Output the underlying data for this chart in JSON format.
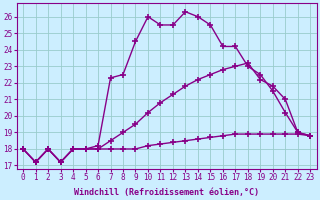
{
  "xlabel": "Windchill (Refroidissement éolien,°C)",
  "background_color": "#cceeff",
  "line_color": "#880088",
  "grid_color": "#99cccc",
  "xlim": [
    -0.5,
    23.5
  ],
  "ylim": [
    16.8,
    26.8
  ],
  "yticks": [
    17,
    18,
    19,
    20,
    21,
    22,
    23,
    24,
    25,
    26
  ],
  "xticks": [
    0,
    1,
    2,
    3,
    4,
    5,
    6,
    7,
    8,
    9,
    10,
    11,
    12,
    13,
    14,
    15,
    16,
    17,
    18,
    19,
    20,
    21,
    22,
    23
  ],
  "line1_x": [
    0,
    1,
    2,
    3,
    4,
    5,
    6,
    7,
    8,
    9,
    10,
    11,
    12,
    13,
    14,
    15,
    16,
    17,
    18,
    19,
    20,
    21,
    22,
    23
  ],
  "line1_y": [
    18.0,
    17.2,
    18.0,
    17.2,
    18.0,
    18.0,
    18.0,
    18.0,
    18.0,
    18.0,
    18.2,
    18.3,
    18.4,
    18.5,
    18.6,
    18.7,
    18.8,
    18.9,
    18.9,
    18.9,
    18.9,
    18.9,
    18.9,
    18.8
  ],
  "line2_x": [
    0,
    1,
    2,
    3,
    4,
    5,
    6,
    7,
    8,
    9,
    10,
    11,
    12,
    13,
    14,
    15,
    16,
    17,
    18,
    19,
    20,
    21,
    22,
    23
  ],
  "line2_y": [
    18.0,
    17.2,
    18.0,
    17.2,
    18.0,
    18.0,
    18.0,
    18.5,
    19.0,
    19.5,
    20.2,
    20.8,
    21.3,
    21.8,
    22.2,
    22.5,
    22.8,
    23.0,
    23.2,
    22.2,
    21.8,
    21.0,
    19.0,
    18.8
  ],
  "line3_x": [
    0,
    1,
    2,
    3,
    4,
    5,
    6,
    7,
    8,
    9,
    10,
    11,
    12,
    13,
    14,
    15,
    16,
    17,
    18,
    19,
    20,
    21,
    22,
    23
  ],
  "line3_y": [
    18.0,
    17.2,
    18.0,
    17.2,
    18.0,
    18.0,
    18.2,
    22.3,
    22.5,
    24.5,
    26.0,
    25.5,
    25.5,
    26.3,
    26.0,
    25.5,
    24.2,
    24.2,
    23.0,
    22.5,
    21.5,
    20.2,
    19.0,
    18.8
  ],
  "marker": "+",
  "markersize": 4,
  "linewidth": 1.0,
  "tick_fontsize": 5.5,
  "label_fontsize": 6.0
}
